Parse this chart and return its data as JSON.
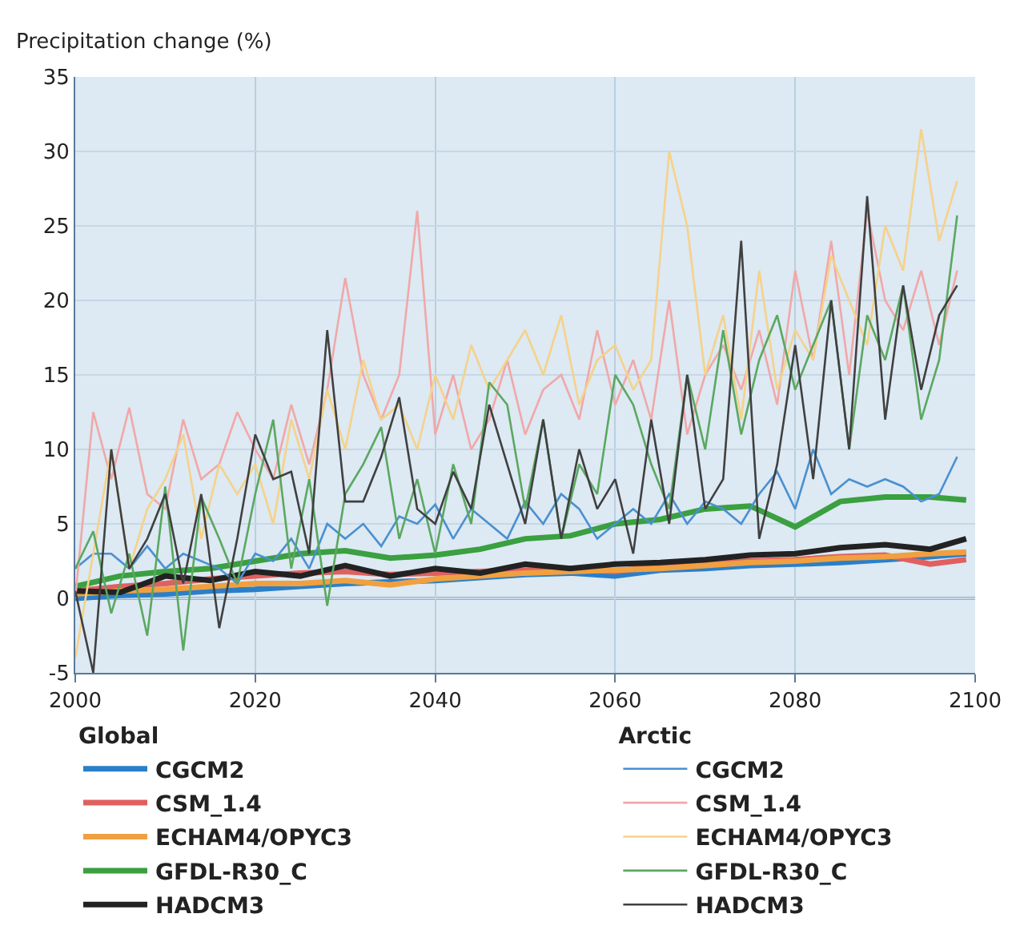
{
  "chart_data": {
    "type": "line",
    "ylabel": "Precipitation change (%)",
    "xlim": [
      2000,
      2100
    ],
    "xticks": [
      2000,
      2020,
      2040,
      2060,
      2080,
      2100
    ],
    "ylim": [
      -5,
      35
    ],
    "yticks": [
      -5,
      0,
      5,
      10,
      15,
      20,
      25,
      30,
      35
    ],
    "grid": true,
    "legend": "bottom",
    "marker": "none",
    "line_style": "solid",
    "legend_title": [
      "Global",
      "Arctic"
    ],
    "ref_lines": [
      {
        "axis": "y",
        "value": 0,
        "color": "#5a7a9a"
      }
    ],
    "x": [
      2000,
      2002,
      2004,
      2006,
      2008,
      2010,
      2012,
      2014,
      2016,
      2018,
      2020,
      2022,
      2024,
      2026,
      2028,
      2030,
      2032,
      2034,
      2036,
      2038,
      2040,
      2042,
      2044,
      2046,
      2048,
      2050,
      2052,
      2054,
      2056,
      2058,
      2060,
      2062,
      2064,
      2066,
      2068,
      2070,
      2072,
      2074,
      2076,
      2078,
      2080,
      2082,
      2084,
      2086,
      2088,
      2090,
      2092,
      2094,
      2096,
      2098
    ],
    "series": [
      {
        "name": "CGCM2",
        "color": "#2a7fc8",
        "x": [
          2000,
          2005,
          2010,
          2015,
          2020,
          2025,
          2030,
          2035,
          2040,
          2045,
          2050,
          2055,
          2060,
          2065,
          2070,
          2075,
          2080,
          2085,
          2090,
          2095,
          2099
        ],
        "values": [
          0,
          0.2,
          0.3,
          0.5,
          0.6,
          0.8,
          1,
          1.1,
          1.2,
          1.4,
          1.6,
          1.7,
          1.5,
          1.9,
          2,
          2.2,
          2.3,
          2.4,
          2.6,
          2.8,
          3.0
        ]
      },
      {
        "name": "CSM_1.4",
        "color": "#e06060",
        "x": [
          2000,
          2005,
          2010,
          2015,
          2020,
          2025,
          2030,
          2035,
          2040,
          2045,
          2050,
          2055,
          2060,
          2065,
          2070,
          2075,
          2080,
          2085,
          2090,
          2095,
          2099
        ],
        "values": [
          0.5,
          0.8,
          1.0,
          1.3,
          1.5,
          1.7,
          1.8,
          1.6,
          1.7,
          1.8,
          1.9,
          2,
          1.8,
          2.2,
          2.4,
          2.5,
          2.6,
          2.8,
          2.9,
          2.3,
          2.6
        ]
      },
      {
        "name": "ECHAM4/OPYC3",
        "color": "#f0a040",
        "x": [
          2000,
          2005,
          2010,
          2015,
          2020,
          2025,
          2030,
          2035,
          2040,
          2045,
          2050,
          2055,
          2060,
          2065,
          2070,
          2075,
          2080,
          2085,
          2090,
          2095,
          2099
        ],
        "values": [
          0.3,
          0.5,
          0.6,
          0.8,
          1.0,
          1.0,
          1.2,
          0.9,
          1.3,
          1.5,
          1.7,
          1.8,
          1.9,
          2.0,
          2.2,
          2.4,
          2.5,
          2.7,
          2.8,
          3.0,
          3.1
        ]
      },
      {
        "name": "GFDL-R30_C",
        "color": "#3aa040",
        "x": [
          2000,
          2005,
          2010,
          2015,
          2020,
          2025,
          2030,
          2035,
          2040,
          2045,
          2050,
          2055,
          2060,
          2065,
          2070,
          2075,
          2080,
          2085,
          2090,
          2095,
          2099
        ],
        "values": [
          0.8,
          1.5,
          1.8,
          2.0,
          2.5,
          3.0,
          3.2,
          2.7,
          2.9,
          3.3,
          4,
          4.2,
          5,
          5.3,
          6,
          6.2,
          4.8,
          6.5,
          6.8,
          6.8,
          6.6
        ]
      },
      {
        "name": "HADCM3",
        "color": "#222222",
        "x": [
          2000,
          2005,
          2010,
          2015,
          2020,
          2025,
          2030,
          2035,
          2040,
          2045,
          2050,
          2055,
          2060,
          2065,
          2070,
          2075,
          2080,
          2085,
          2090,
          2095,
          2099
        ],
        "values": [
          0.5,
          0.4,
          1.5,
          1.2,
          1.8,
          1.5,
          2.2,
          1.5,
          2.0,
          1.7,
          2.3,
          2.0,
          2.3,
          2.4,
          2.6,
          2.9,
          3.0,
          3.4,
          3.6,
          3.3,
          4.0
        ]
      },
      {
        "name": "CGCM2",
        "color": "#4a90d0",
        "values": [
          2,
          3,
          3,
          2,
          3.5,
          2,
          3,
          2.5,
          2,
          1,
          3,
          2.5,
          4,
          2,
          5,
          4,
          5,
          3.5,
          5.5,
          5,
          6.3,
          4,
          6,
          5,
          4,
          6.5,
          5,
          7,
          6,
          4,
          5,
          6,
          5,
          7,
          5,
          6.5,
          6,
          5,
          7,
          8.5,
          6,
          10,
          7,
          8,
          7.5,
          8,
          7.5,
          6.5,
          7,
          9.5
        ]
      },
      {
        "name": "CSM_1.4",
        "color": "#f0a8a8",
        "values": [
          0,
          12.5,
          8,
          12.8,
          7,
          6,
          12,
          8,
          9,
          12.5,
          10,
          8,
          13,
          9,
          14,
          21.5,
          15,
          12,
          15,
          26,
          11,
          15,
          10,
          12,
          16,
          11,
          14,
          15,
          12,
          18,
          13,
          16,
          12,
          20,
          11,
          15,
          17,
          14,
          18,
          13,
          22,
          16,
          24,
          15,
          26,
          20,
          18,
          22,
          17,
          22
        ]
      },
      {
        "name": "ECHAM4/OPYC3",
        "color": "#f5d28a",
        "values": [
          -4,
          3,
          10,
          2,
          6,
          8,
          11,
          4,
          9,
          7,
          9,
          5,
          12,
          8,
          14,
          10,
          16,
          12,
          13,
          10,
          15,
          12,
          17,
          14,
          16,
          18,
          15,
          19,
          13,
          16,
          17,
          14,
          16,
          30,
          25,
          15,
          19,
          12,
          22,
          14,
          18,
          16,
          23,
          20,
          17,
          25,
          22,
          31.5,
          24,
          28
        ]
      },
      {
        "name": "GFDL-R30_C",
        "color": "#5aa860",
        "values": [
          2,
          4.5,
          -1,
          3,
          -2.5,
          7.5,
          -3.5,
          6.8,
          4,
          1,
          7,
          12,
          2,
          8,
          -0.5,
          7,
          9,
          11.5,
          4,
          8,
          3,
          9,
          5,
          14.5,
          13,
          6,
          12,
          4,
          9,
          7,
          15,
          13,
          9,
          6,
          15,
          10,
          18,
          11,
          16,
          19,
          14,
          17,
          20,
          10,
          19,
          16,
          21,
          12,
          16,
          25.7
        ]
      },
      {
        "name": "HADCM3",
        "color": "#404040",
        "values": [
          0.5,
          -5,
          10,
          2,
          4,
          7,
          1,
          7,
          -2,
          4,
          11,
          8,
          8.5,
          3,
          18,
          6.5,
          6.5,
          9.5,
          13.5,
          6,
          5,
          8.5,
          6,
          13,
          9,
          5,
          12,
          4,
          10,
          6,
          8,
          3,
          12,
          5,
          15,
          6,
          8,
          24,
          4,
          9,
          17,
          8,
          20,
          10,
          27,
          12,
          21,
          14,
          19,
          21
        ]
      }
    ]
  }
}
